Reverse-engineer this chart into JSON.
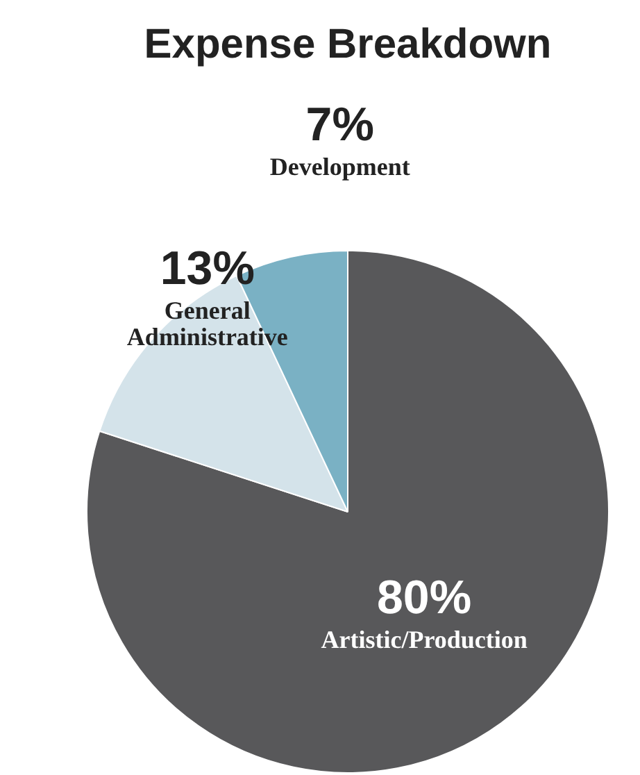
{
  "chart_data": {
    "type": "pie",
    "title": "Expense Breakdown",
    "categories": [
      "Artistic/Production",
      "General Administrative",
      "Development"
    ],
    "values": [
      80,
      13,
      7
    ],
    "colors": [
      "#58585a",
      "#d4e3ea",
      "#7ab1c4"
    ],
    "value_labels": [
      "80%",
      "13%",
      "7%"
    ]
  }
}
